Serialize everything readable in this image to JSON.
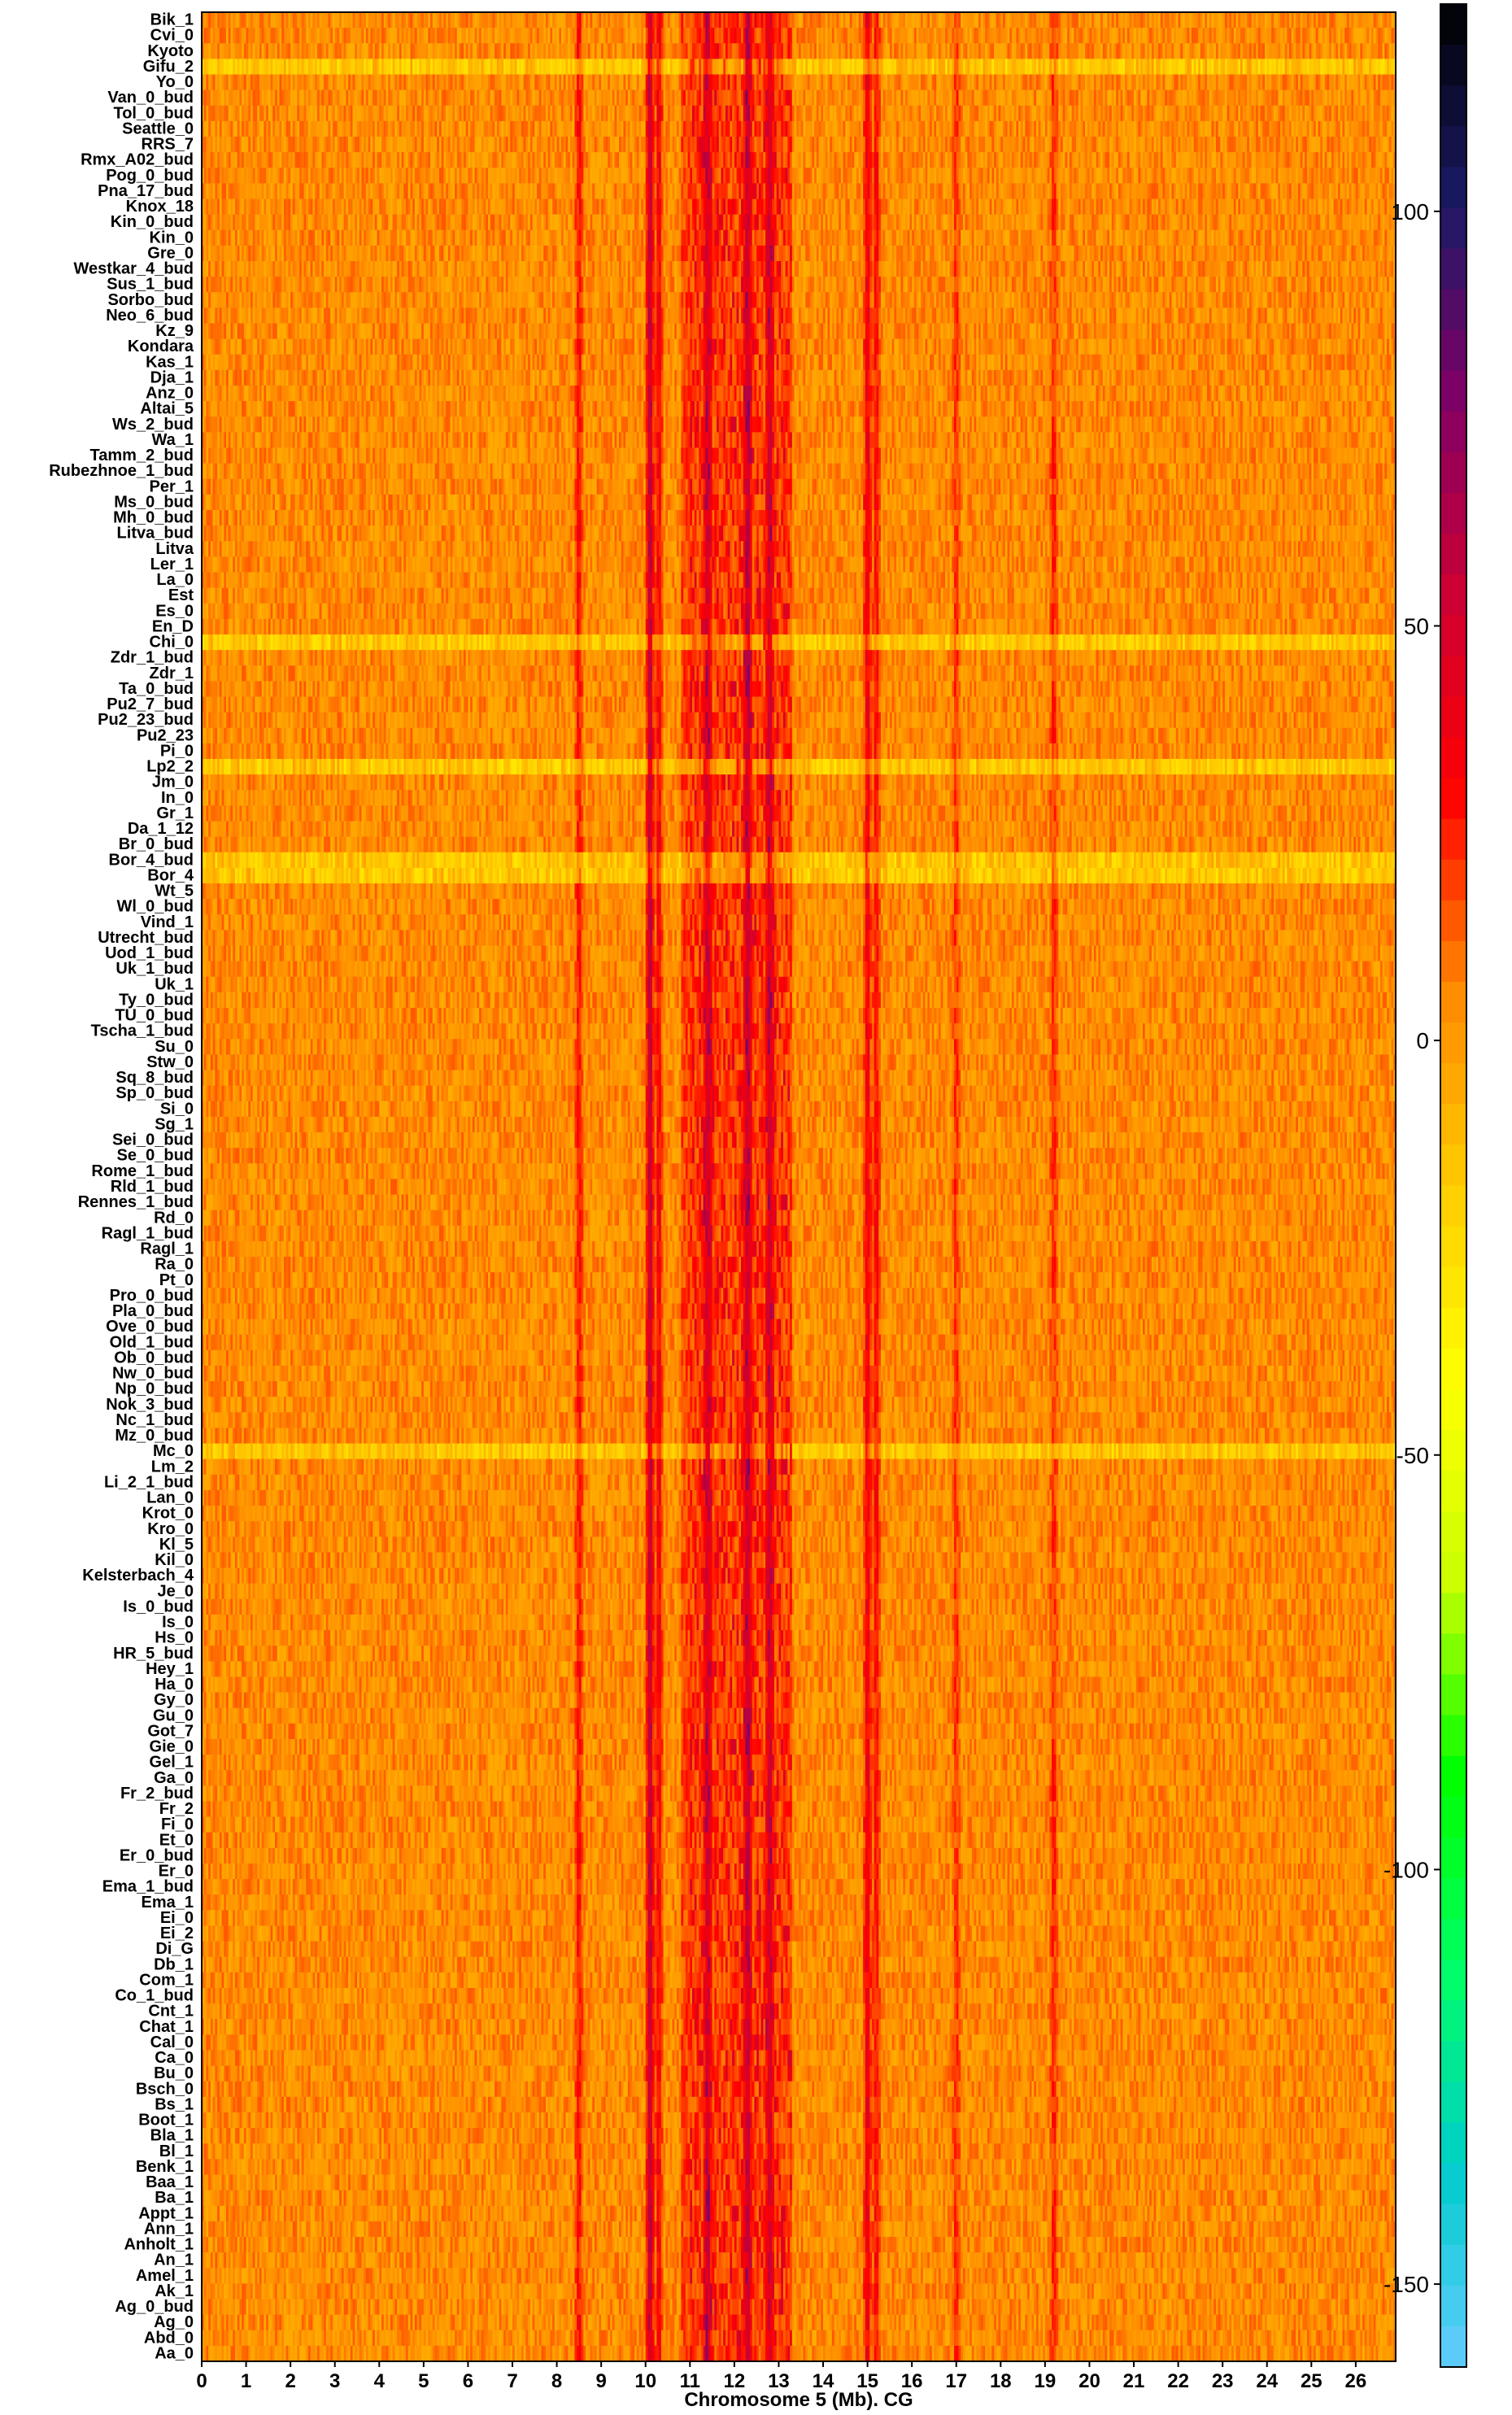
{
  "chart_data": {
    "type": "heatmap",
    "xlabel": "Chromosome 5 (Mb). CG",
    "xlim": [
      0,
      26.9
    ],
    "x_ticks": [
      "0",
      "1",
      "2",
      "3",
      "4",
      "5",
      "6",
      "7",
      "8",
      "9",
      "10",
      "11",
      "12",
      "13",
      "14",
      "15",
      "16",
      "17",
      "18",
      "19",
      "20",
      "21",
      "22",
      "23",
      "24",
      "25",
      "26"
    ],
    "rows": [
      "Bik_1",
      "Cvi_0",
      "Kyoto",
      "Gifu_2",
      "Yo_0",
      "Van_0_bud",
      "Tol_0_bud",
      "Seattle_0",
      "RRS_7",
      "Rmx_A02_bud",
      "Pog_0_bud",
      "Pna_17_bud",
      "Knox_18",
      "Kin_0_bud",
      "Kin_0",
      "Gre_0",
      "Westkar_4_bud",
      "Sus_1_bud",
      "Sorbo_bud",
      "Neo_6_bud",
      "Kz_9",
      "Kondara",
      "Kas_1",
      "Dja_1",
      "Anz_0",
      "Altai_5",
      "Ws_2_bud",
      "Wa_1",
      "Tamm_2_bud",
      "Rubezhnoe_1_bud",
      "Per_1",
      "Ms_0_bud",
      "Mh_0_bud",
      "Litva_bud",
      "Litva",
      "Ler_1",
      "La_0",
      "Est",
      "Es_0",
      "En_D",
      "Chi_0",
      "Zdr_1_bud",
      "Zdr_1",
      "Ta_0_bud",
      "Pu2_7_bud",
      "Pu2_23_bud",
      "Pu2_23",
      "Pi_0",
      "Lp2_2",
      "Jm_0",
      "In_0",
      "Gr_1",
      "Da_1_12",
      "Br_0_bud",
      "Bor_4_bud",
      "Bor_4",
      "Wt_5",
      "Wl_0_bud",
      "Vind_1",
      "Utrecht_bud",
      "Uod_1_bud",
      "Uk_1_bud",
      "Uk_1",
      "Ty_0_bud",
      "TU_0_bud",
      "Tscha_1_bud",
      "Su_0",
      "Stw_0",
      "Sq_8_bud",
      "Sp_0_bud",
      "Si_0",
      "Sg_1",
      "Sei_0_bud",
      "Se_0_bud",
      "Rome_1_bud",
      "Rld_1_bud",
      "Rennes_1_bud",
      "Rd_0",
      "Ragl_1_bud",
      "Ragl_1",
      "Ra_0",
      "Pt_0",
      "Pro_0_bud",
      "Pla_0_bud",
      "Ove_0_bud",
      "Old_1_bud",
      "Ob_0_bud",
      "Nw_0_bud",
      "Np_0_bud",
      "Nok_3_bud",
      "Nc_1_bud",
      "Mz_0_bud",
      "Mc_0",
      "Lm_2",
      "Li_2_1_bud",
      "Lan_0",
      "Krot_0",
      "Kro_0",
      "Kl_5",
      "Kil_0",
      "Kelsterbach_4",
      "Je_0",
      "Is_0_bud",
      "Is_0",
      "Hs_0",
      "HR_5_bud",
      "Hey_1",
      "Ha_0",
      "Gy_0",
      "Gu_0",
      "Got_7",
      "Gie_0",
      "Gel_1",
      "Ga_0",
      "Fr_2_bud",
      "Fr_2",
      "Fi_0",
      "Et_0",
      "Er_0_bud",
      "Er_0",
      "Ema_1_bud",
      "Ema_1",
      "Ei_0",
      "Ei_2",
      "Di_G",
      "Db_1",
      "Com_1",
      "Co_1_bud",
      "Cnt_1",
      "Chat_1",
      "Cal_0",
      "Ca_0",
      "Bu_0",
      "Bsch_0",
      "Bs_1",
      "Boot_1",
      "Bla_1",
      "Bl_1",
      "Benk_1",
      "Baa_1",
      "Ba_1",
      "Appt_1",
      "Ann_1",
      "Anholt_1",
      "An_1",
      "Amel_1",
      "Ak_1",
      "Ag_0_bud",
      "Ag_0",
      "Abd_0",
      "Aa_0"
    ],
    "bins_per_mb": 20,
    "profile": {
      "baseline": 4,
      "hotspots_mb": [
        [
          8.5,
          30
        ],
        [
          10.1,
          60
        ],
        [
          10.3,
          35
        ],
        [
          11.4,
          35
        ],
        [
          12.3,
          40
        ],
        [
          12.8,
          35
        ],
        [
          15.0,
          40
        ],
        [
          15.2,
          30
        ],
        [
          17.0,
          20
        ],
        [
          19.2,
          22
        ]
      ],
      "green_rows": [
        "Gifu_2",
        "Bor_4_bud",
        "Bor_4",
        "Chi_0",
        "Lp2_2",
        "Mc_0"
      ]
    },
    "colorbar": {
      "range": [
        -160,
        125
      ],
      "ticks": [
        "100",
        "50",
        "0",
        "-50",
        "-100",
        "-150"
      ],
      "tick_values": [
        100,
        50,
        0,
        -50,
        -100,
        -150
      ],
      "colors": [
        "#66ccff",
        "#00cccc",
        "#00ff66",
        "#00ff00",
        "#ccff00",
        "#ffff00",
        "#ffcc00",
        "#ff8800",
        "#ff0000",
        "#cc0033",
        "#800066",
        "#1a1a66",
        "#000000"
      ]
    }
  }
}
